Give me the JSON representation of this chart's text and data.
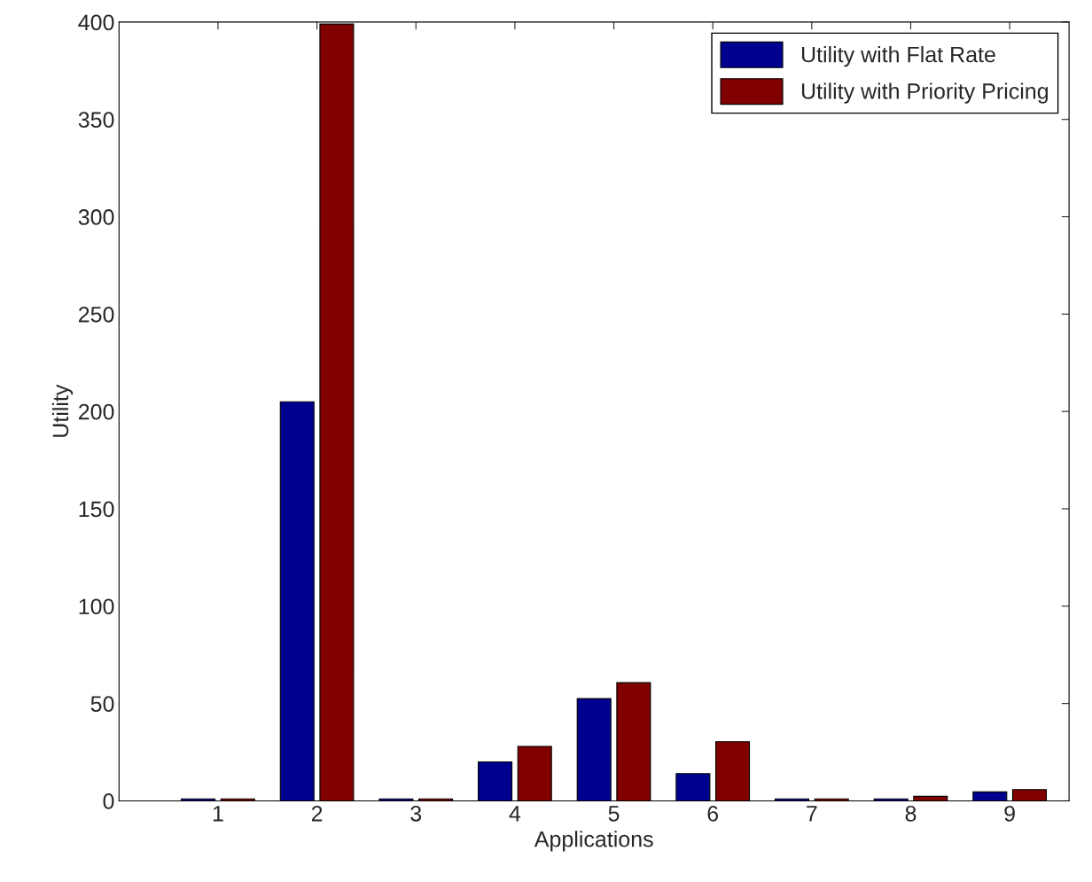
{
  "chart_data": {
    "type": "bar",
    "xlabel": "Applications",
    "ylabel": "Utility",
    "x": [
      1,
      2,
      3,
      4,
      5,
      6,
      7,
      8,
      9
    ],
    "series": [
      {
        "name": "Utility with Flat Rate",
        "color": "#00008f",
        "values": [
          1,
          205,
          1,
          20,
          52.5,
          14,
          1,
          1,
          4.6
        ]
      },
      {
        "name": "Utility with Priority Pricing",
        "color": "#800000",
        "values": [
          1,
          399,
          1,
          28,
          60.7,
          30.4,
          1,
          2.3,
          5.8
        ]
      }
    ],
    "xlim": [
      0,
      9.6
    ],
    "xticks": [
      1,
      2,
      3,
      4,
      5,
      6,
      7,
      8,
      9
    ],
    "ylim": [
      0,
      400
    ],
    "yticks": [
      0,
      50,
      100,
      150,
      200,
      250,
      300,
      350,
      400
    ],
    "grid": false,
    "legend": "top right"
  }
}
